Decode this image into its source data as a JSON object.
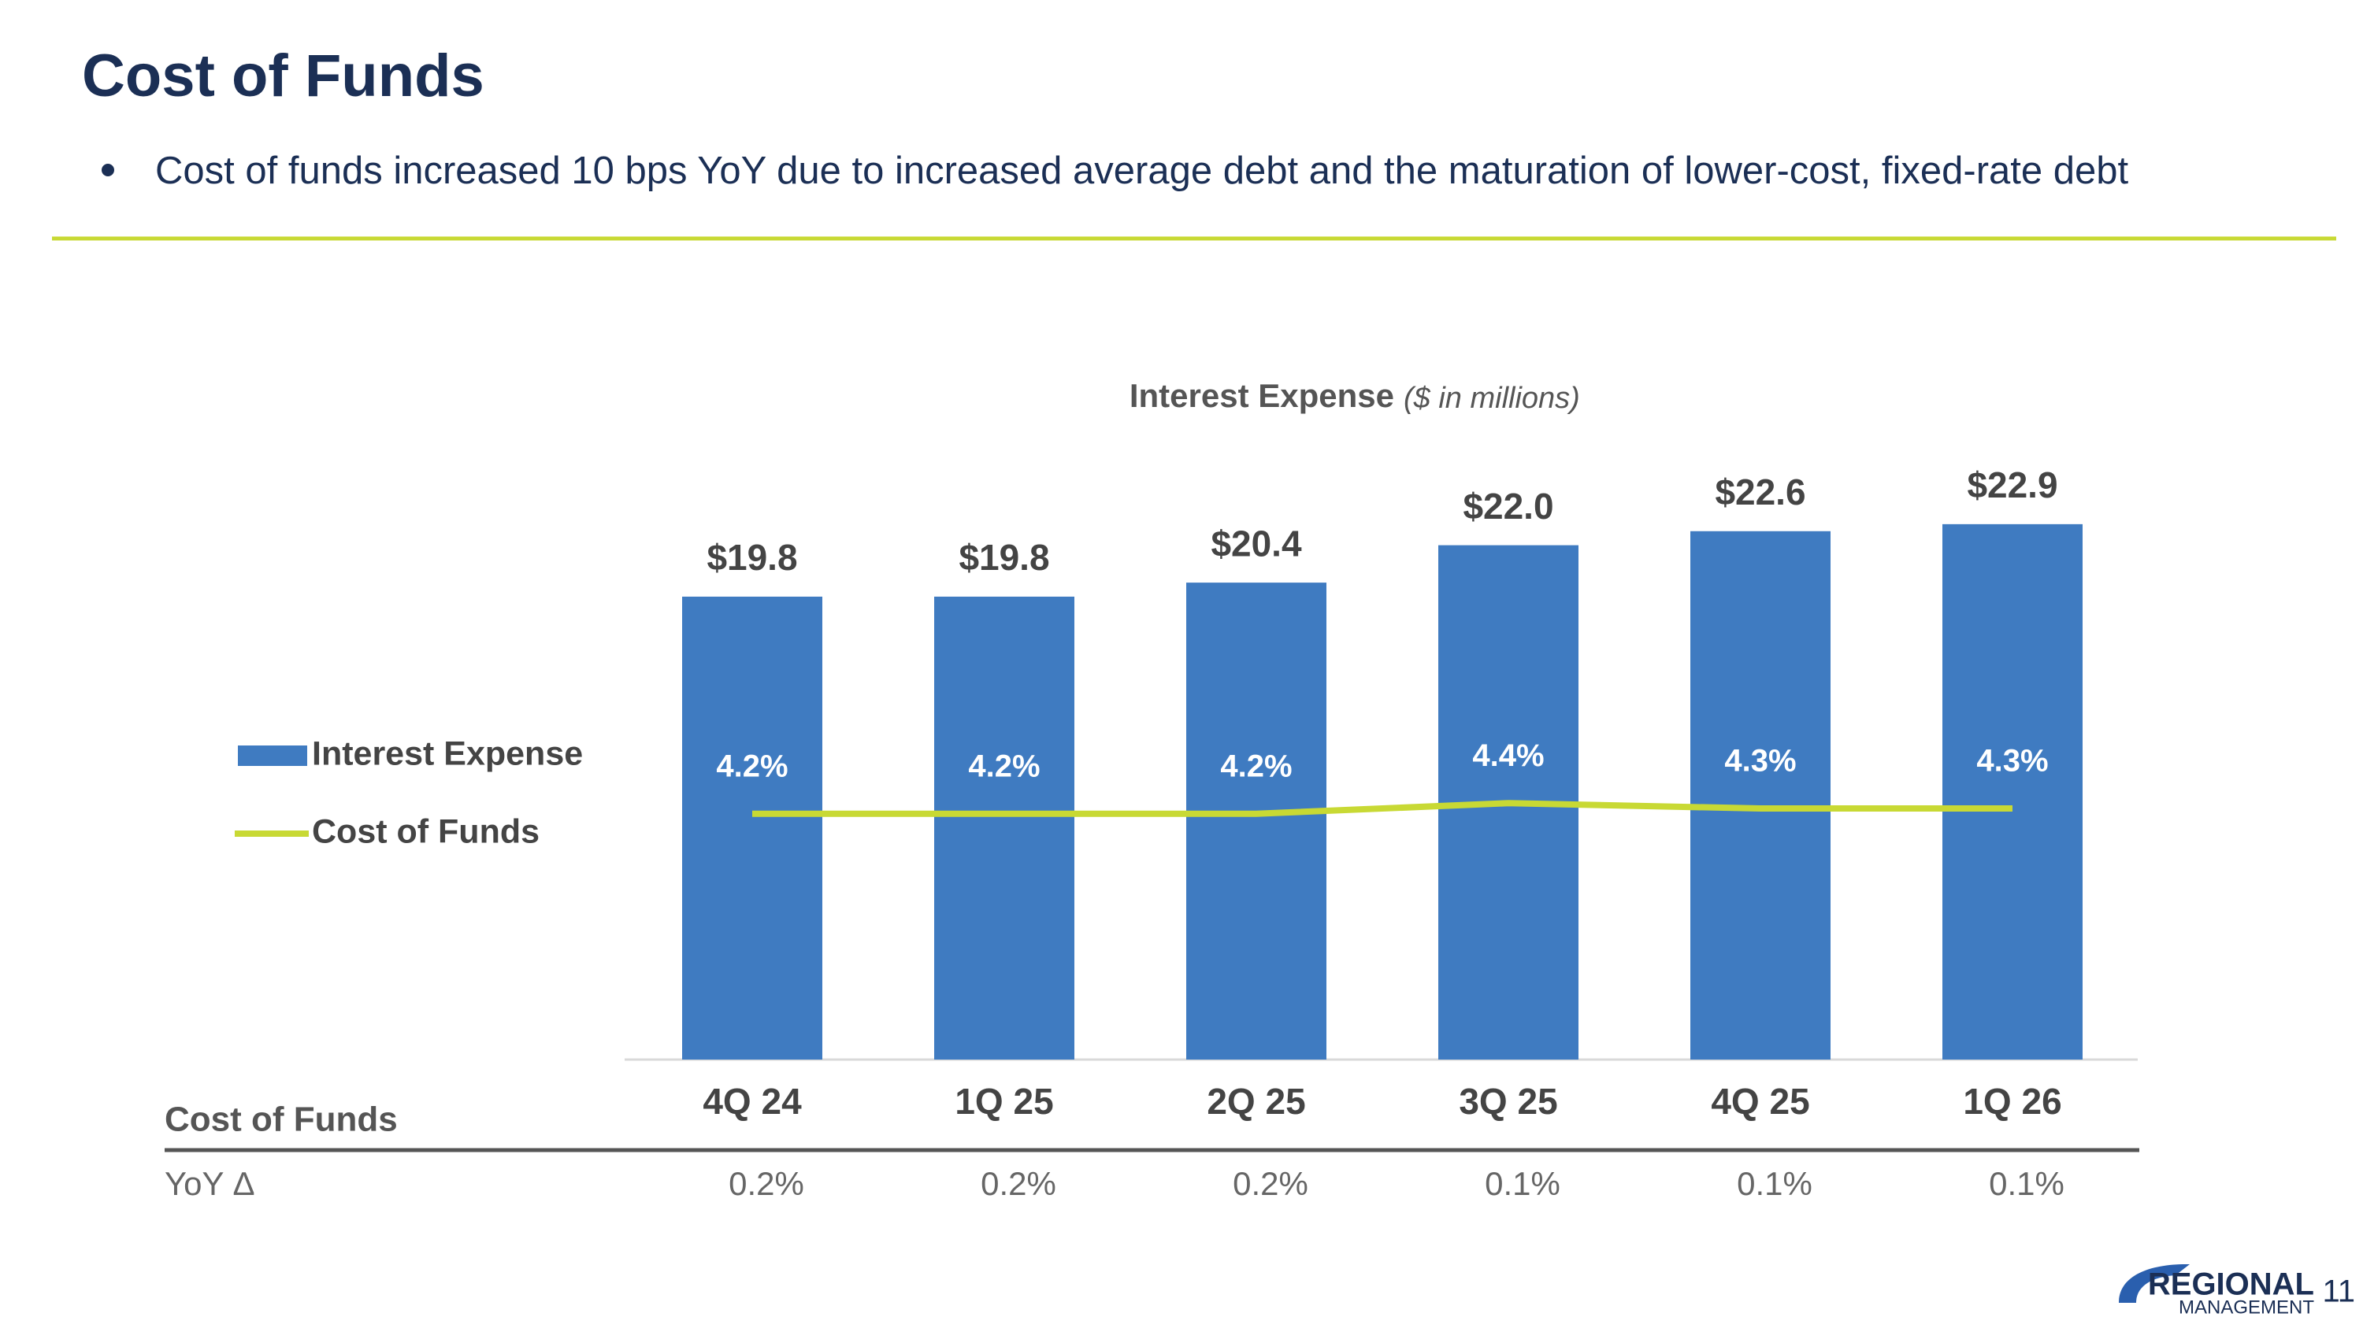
{
  "header": {
    "title": "Cost of Funds",
    "bullets": [
      "Cost of funds increased 10 bps YoY due to increased average debt and the maturation of lower-cost, fixed-rate debt"
    ]
  },
  "chart_data": {
    "type": "bar",
    "title": "Interest Expense",
    "subtitle": "($ in millions)",
    "categories": [
      "4Q 24",
      "1Q 25",
      "2Q 25",
      "3Q 25",
      "4Q 25",
      "1Q 26"
    ],
    "series": [
      {
        "name": "Interest Expense",
        "type": "bar",
        "color": "#3f7bc1",
        "values": [
          19.8,
          19.8,
          20.4,
          22.0,
          22.6,
          22.9
        ],
        "value_labels": [
          "$19.8",
          "$19.8",
          "$20.4",
          "$22.0",
          "$22.6",
          "$22.9"
        ]
      },
      {
        "name": "Cost of Funds",
        "type": "line",
        "axis": "y2",
        "color": "#c8d934",
        "values": [
          4.2,
          4.2,
          4.2,
          4.4,
          4.3,
          4.3
        ],
        "value_labels": [
          "4.2%",
          "4.2%",
          "4.2%",
          "4.4%",
          "4.3%",
          "4.3%"
        ]
      }
    ],
    "ylim": [
      0,
      30
    ],
    "y2lim": [
      0,
      6
    ],
    "grid": false,
    "legend": "left"
  },
  "table": {
    "title": "Cost of Funds",
    "row_label": "YoY Δ",
    "values": [
      "0.2%",
      "0.2%",
      "0.2%",
      "0.1%",
      "0.1%",
      "0.1%"
    ]
  },
  "footer": {
    "logo_top": "REGIONAL",
    "logo_bottom": "MANAGEMENT",
    "page_number": "11"
  }
}
